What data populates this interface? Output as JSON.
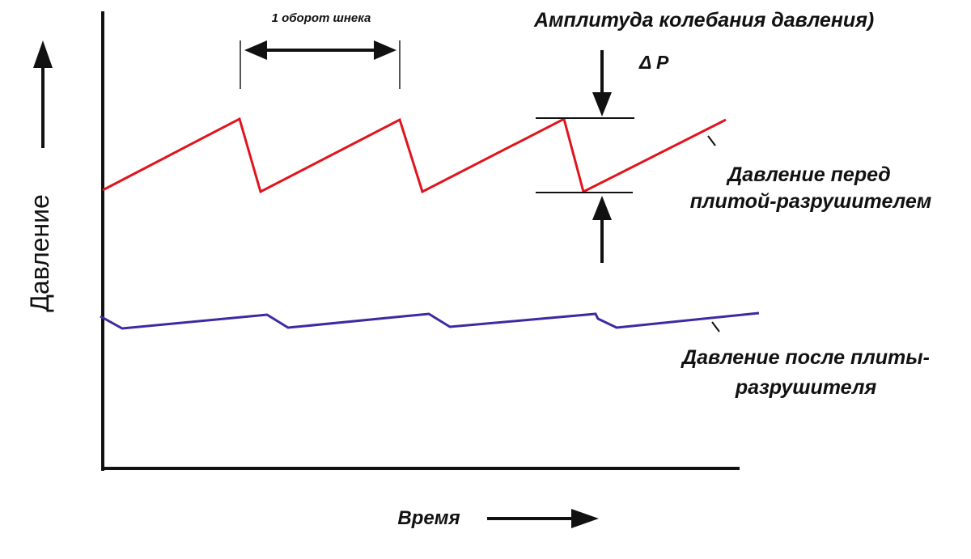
{
  "axes": {
    "y_label": "Давление",
    "x_label": "Время"
  },
  "annotations": {
    "screw_turn": "1 оборот шнека",
    "amplitude": "Амплитуда колебания давления)",
    "delta_p": "Δ P",
    "before_plate_line1": "Давление перед",
    "before_plate_line2": "плитой-разрушителем",
    "after_plate_line1": "Давление после плиты-",
    "after_plate_line2": "разрушителя"
  },
  "colors": {
    "pressure_before": "#e0141e",
    "pressure_after": "#3b2aa0",
    "axis": "#111111"
  }
}
